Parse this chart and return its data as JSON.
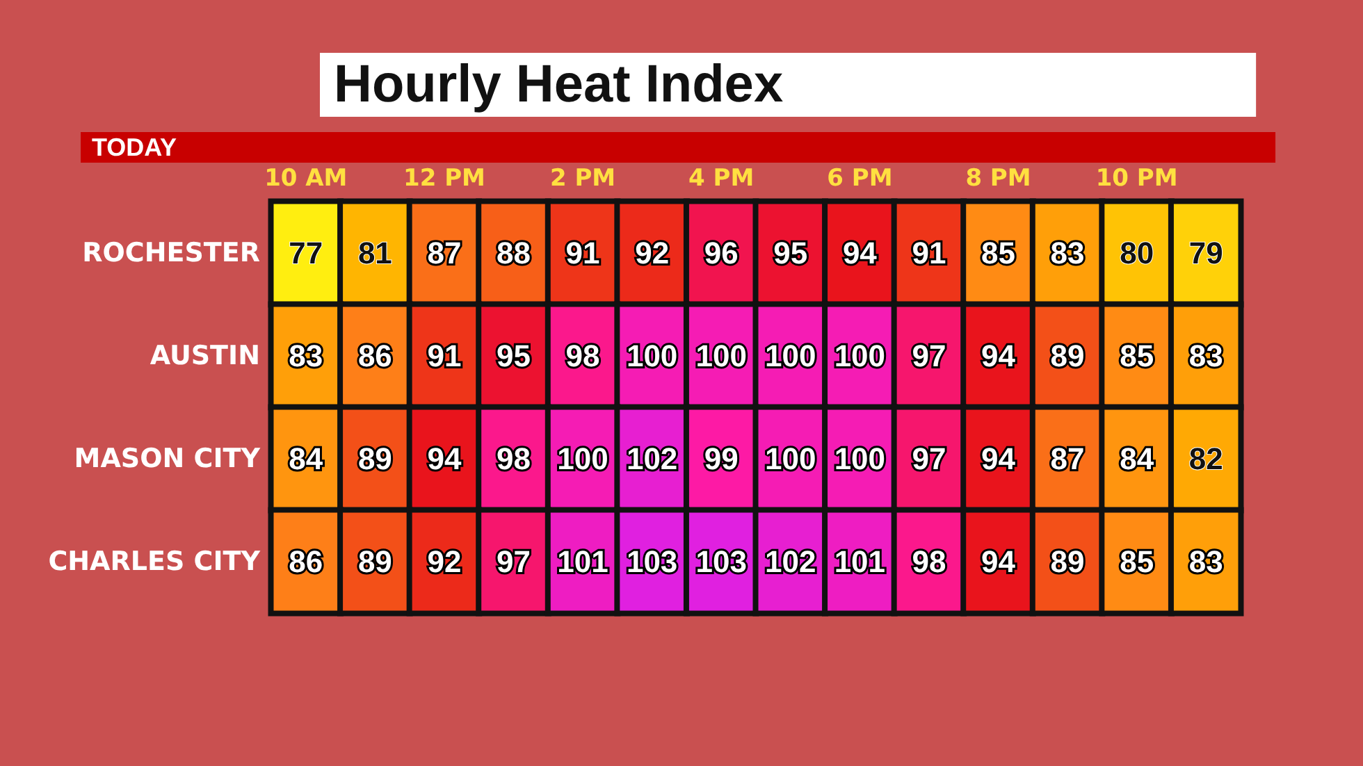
{
  "chart_data": {
    "type": "heatmap",
    "title": "Hourly Heat Index",
    "subtitle": "TODAY",
    "categories": [
      "10 AM",
      null,
      "12 PM",
      null,
      "2 PM",
      null,
      "4 PM",
      null,
      "6 PM",
      null,
      "8 PM",
      null,
      "10 PM",
      null
    ],
    "y_categories": [
      "ROCHESTER",
      "AUSTIN",
      "MASON CITY",
      "CHARLES CITY"
    ],
    "cells": [
      [
        77,
        81,
        87,
        88,
        91,
        92,
        96,
        95,
        94,
        91,
        85,
        83,
        80,
        79
      ],
      [
        83,
        86,
        91,
        95,
        98,
        100,
        100,
        100,
        100,
        97,
        94,
        89,
        85,
        83
      ],
      [
        84,
        89,
        94,
        98,
        100,
        102,
        99,
        100,
        100,
        97,
        94,
        87,
        84,
        82
      ],
      [
        86,
        89,
        92,
        97,
        101,
        103,
        103,
        102,
        101,
        98,
        94,
        89,
        85,
        83
      ]
    ],
    "data_labels": true
  }
}
